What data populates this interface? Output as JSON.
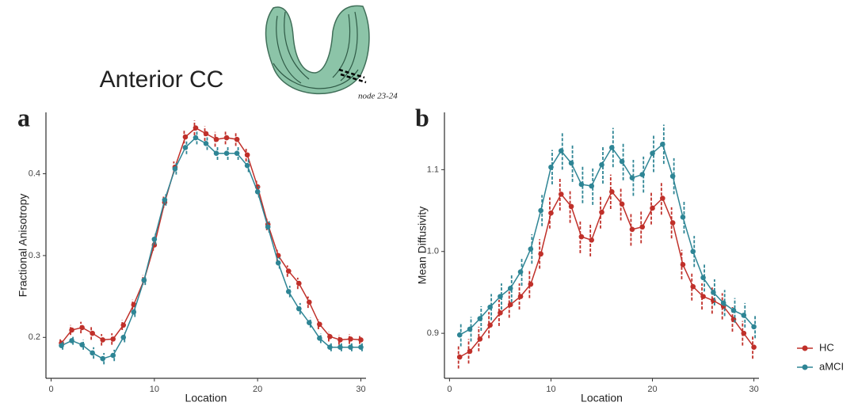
{
  "figure_title": "Anterior CC",
  "image_label": "node 23-24",
  "chart_data": [
    {
      "type": "line",
      "panel_label": "a",
      "xlabel": "Location",
      "ylabel": "Fractional Anisotropy",
      "x": [
        1,
        2,
        3,
        4,
        5,
        6,
        7,
        8,
        9,
        10,
        11,
        12,
        13,
        14,
        15,
        16,
        17,
        18,
        19,
        20,
        21,
        22,
        23,
        24,
        25,
        26,
        27,
        28,
        29,
        30
      ],
      "xlim": [
        -0.5,
        30.5
      ],
      "xticks": [
        0,
        10,
        20,
        30
      ],
      "ylim": [
        0.15,
        0.475
      ],
      "yticks": [
        0.2,
        0.3,
        0.4
      ],
      "grid": false,
      "series": [
        {
          "name": "HC",
          "color": "#c0302a",
          "values": [
            0.193,
            0.209,
            0.212,
            0.205,
            0.197,
            0.198,
            0.215,
            0.24,
            0.27,
            0.313,
            0.365,
            0.408,
            0.445,
            0.456,
            0.449,
            0.442,
            0.444,
            0.442,
            0.423,
            0.384,
            0.338,
            0.3,
            0.281,
            0.266,
            0.243,
            0.216,
            0.201,
            0.197,
            0.198,
            0.197
          ],
          "errors": [
            0.005,
            0.006,
            0.007,
            0.008,
            0.007,
            0.007,
            0.006,
            0.006,
            0.006,
            0.007,
            0.007,
            0.007,
            0.008,
            0.009,
            0.009,
            0.009,
            0.008,
            0.008,
            0.008,
            0.008,
            0.007,
            0.007,
            0.007,
            0.007,
            0.007,
            0.006,
            0.006,
            0.006,
            0.006,
            0.005
          ]
        },
        {
          "name": "aMCI",
          "color": "#2e8595",
          "values": [
            0.19,
            0.196,
            0.191,
            0.181,
            0.174,
            0.178,
            0.2,
            0.231,
            0.27,
            0.32,
            0.368,
            0.406,
            0.432,
            0.444,
            0.437,
            0.425,
            0.425,
            0.425,
            0.41,
            0.378,
            0.335,
            0.291,
            0.256,
            0.235,
            0.218,
            0.199,
            0.188,
            0.188,
            0.188,
            0.188
          ],
          "errors": [
            0.005,
            0.005,
            0.006,
            0.007,
            0.007,
            0.007,
            0.006,
            0.006,
            0.006,
            0.007,
            0.007,
            0.007,
            0.008,
            0.008,
            0.008,
            0.008,
            0.008,
            0.008,
            0.008,
            0.007,
            0.007,
            0.007,
            0.007,
            0.007,
            0.006,
            0.006,
            0.005,
            0.005,
            0.005,
            0.005
          ]
        }
      ]
    },
    {
      "type": "line",
      "panel_label": "b",
      "xlabel": "Location",
      "ylabel": "Mean Diffusivity",
      "x": [
        1,
        2,
        3,
        4,
        5,
        6,
        7,
        8,
        9,
        10,
        11,
        12,
        13,
        14,
        15,
        16,
        17,
        18,
        19,
        20,
        21,
        22,
        23,
        24,
        25,
        26,
        27,
        28,
        29,
        30
      ],
      "xlim": [
        -0.5,
        30.5
      ],
      "xticks": [
        0,
        10,
        20,
        30
      ],
      "ylim": [
        0.845,
        1.17
      ],
      "yticks": [
        0.9,
        {
          "value": 1.0,
          "label": "1.0"
        },
        1.1
      ],
      "grid": false,
      "legend": "right",
      "series": [
        {
          "name": "HC",
          "color": "#c0302a",
          "values": [
            0.871,
            0.878,
            0.893,
            0.91,
            0.925,
            0.935,
            0.945,
            0.96,
            0.997,
            1.047,
            1.07,
            1.055,
            1.018,
            1.014,
            1.048,
            1.073,
            1.058,
            1.027,
            1.03,
            1.053,
            1.065,
            1.035,
            0.984,
            0.957,
            0.945,
            0.94,
            0.933,
            0.917,
            0.9,
            0.883
          ],
          "errors": [
            0.014,
            0.015,
            0.015,
            0.016,
            0.016,
            0.016,
            0.016,
            0.017,
            0.018,
            0.019,
            0.02,
            0.02,
            0.02,
            0.02,
            0.02,
            0.021,
            0.02,
            0.02,
            0.02,
            0.02,
            0.02,
            0.019,
            0.018,
            0.017,
            0.016,
            0.016,
            0.016,
            0.015,
            0.015,
            0.014
          ]
        },
        {
          "name": "aMCI",
          "color": "#2e8595",
          "values": [
            0.898,
            0.905,
            0.918,
            0.932,
            0.945,
            0.955,
            0.975,
            1.003,
            1.05,
            1.103,
            1.123,
            1.108,
            1.082,
            1.08,
            1.106,
            1.127,
            1.11,
            1.09,
            1.094,
            1.12,
            1.131,
            1.092,
            1.042,
            1.0,
            0.968,
            0.95,
            0.937,
            0.928,
            0.922,
            0.908
          ],
          "errors": [
            0.014,
            0.015,
            0.015,
            0.016,
            0.016,
            0.017,
            0.017,
            0.018,
            0.019,
            0.021,
            0.023,
            0.023,
            0.023,
            0.023,
            0.023,
            0.024,
            0.023,
            0.022,
            0.022,
            0.023,
            0.024,
            0.022,
            0.02,
            0.019,
            0.017,
            0.016,
            0.016,
            0.015,
            0.015,
            0.014
          ]
        }
      ]
    }
  ]
}
